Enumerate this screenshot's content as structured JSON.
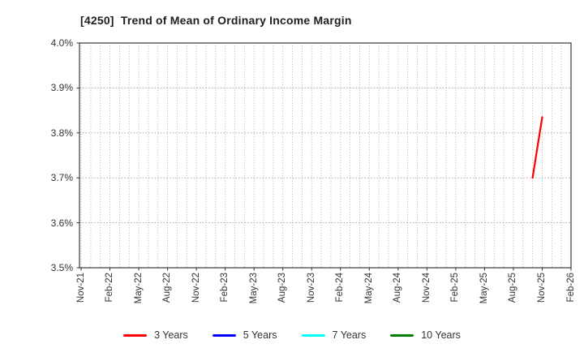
{
  "chart_data": {
    "type": "line",
    "title": "[4250]  Trend of Mean of Ordinary Income Margin",
    "xlabel": "",
    "ylabel": "",
    "ylim": [
      3.5,
      4.0
    ],
    "y_ticks": [
      "4.0%",
      "3.9%",
      "3.8%",
      "3.7%",
      "3.6%",
      "3.5%"
    ],
    "y_tick_values": [
      4.0,
      3.9,
      3.8,
      3.7,
      3.6,
      3.5
    ],
    "x_start_month": "Nov-21",
    "x_end_month": "Feb-26",
    "x_total_months": 51,
    "x_tick_every_months": 3,
    "x_tick_labels": [
      "Nov-21",
      "Feb-22",
      "May-22",
      "Aug-22",
      "Nov-22",
      "Feb-23",
      "May-23",
      "Aug-23",
      "Nov-23",
      "Feb-24",
      "May-24",
      "Aug-24",
      "Nov-24",
      "Feb-25",
      "May-25",
      "Aug-25",
      "Nov-25",
      "Feb-26"
    ],
    "grid": {
      "shown": true,
      "style": "dotted",
      "vertical_interval": "monthly",
      "horizontal_interval": "0.1%"
    },
    "legend_position": "bottom-center",
    "series": [
      {
        "name": "3 Years",
        "color": "#ff0000",
        "points": [
          {
            "month": "Oct-25",
            "value": 3.7
          },
          {
            "month": "Nov-25",
            "value": 3.835
          }
        ]
      },
      {
        "name": "5 Years",
        "color": "#0000ff",
        "points": []
      },
      {
        "name": "7 Years",
        "color": "#00ffff",
        "points": []
      },
      {
        "name": "10 Years",
        "color": "#008000",
        "points": []
      }
    ]
  },
  "colors": {
    "background": "#ffffff",
    "spine": "#3a3a3a",
    "grid_vertical": "#ababab",
    "grid_horizontal": "#9e9e9e",
    "tick": "#333333",
    "tick_text": "#333333",
    "title_text": "#1f1f1f"
  }
}
